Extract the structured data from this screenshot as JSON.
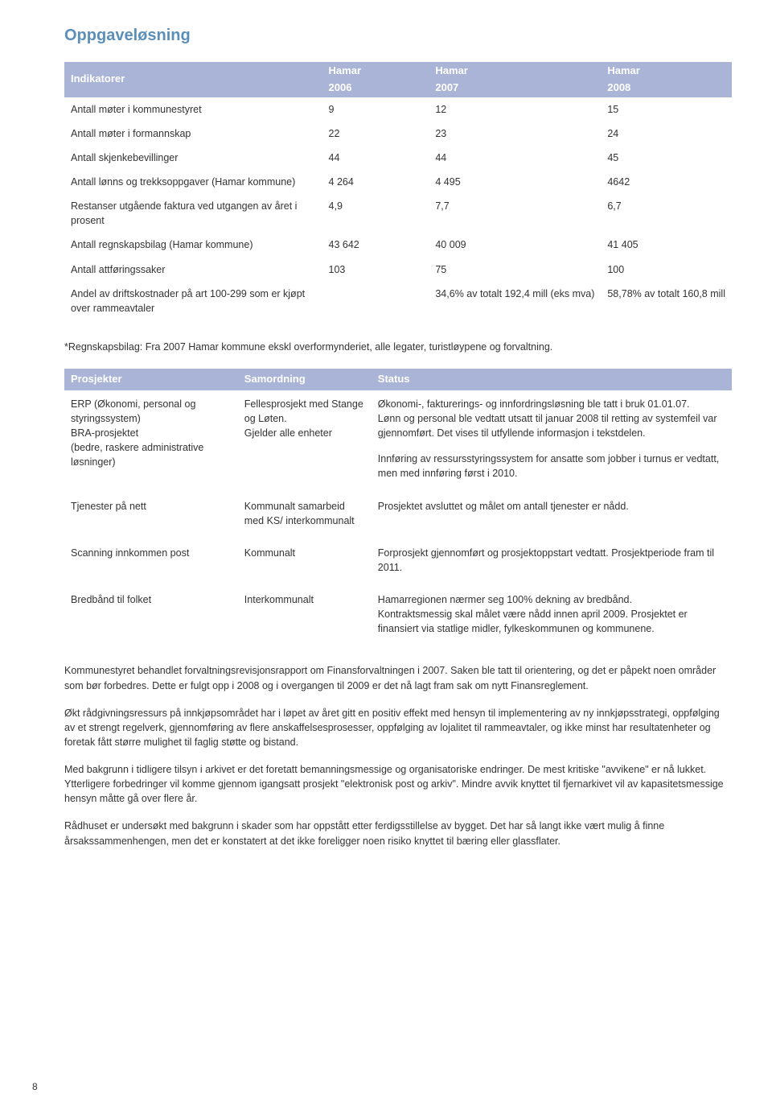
{
  "section_title": "Oppgaveløsning",
  "indicators_table": {
    "header": {
      "c0": "Indikatorer",
      "c1_l1": "Hamar",
      "c1_l2": "2006",
      "c2_l1": "Hamar",
      "c2_l2": "2007",
      "c3_l1": "Hamar",
      "c3_l2": "2008"
    },
    "rows": [
      {
        "label": "Antall møter i kommunestyret",
        "v1": "9",
        "v2": "12",
        "v3": "15"
      },
      {
        "label": "Antall møter i formannskap",
        "v1": "22",
        "v2": "23",
        "v3": "24"
      },
      {
        "label": "Antall skjenkebevillinger",
        "v1": "44",
        "v2": "44",
        "v3": "45"
      },
      {
        "label": "Antall lønns og trekksoppgaver (Hamar kommune)",
        "v1": "4 264",
        "v2": "4 495",
        "v3": "4642"
      },
      {
        "label": "Restanser utgående faktura ved utgangen av året i prosent",
        "v1": "4,9",
        "v2": "7,7",
        "v3": "6,7"
      },
      {
        "label": "Antall regnskapsbilag (Hamar kommune)",
        "v1": "43 642",
        "v2": "40 009",
        "v3": "41 405"
      },
      {
        "label": "Antall attføringssaker",
        "v1": "103",
        "v2": "75",
        "v3": "100"
      },
      {
        "label": "Andel av driftskostnader på art 100-299 som er kjøpt over rammeavtaler",
        "v1": "",
        "v2": "34,6% av totalt 192,4 mill (eks mva)",
        "v3": "58,78% av totalt 160,8 mill"
      }
    ]
  },
  "footnote": "*Regnskapsbilag: Fra 2007 Hamar kommune ekskl overformynderiet, alle legater, turistløypene og forvaltning.",
  "projects_table": {
    "header": {
      "c0": "Prosjekter",
      "c1": "Samordning",
      "c2": "Status"
    },
    "rows": [
      {
        "project": "ERP (Økonomi, personal og styringssystem)\nBRA-prosjektet\n(bedre, raskere administrative løsninger)",
        "coord": "Fellesprosjekt med Stange og Løten.\nGjelder alle enheter",
        "status_p1": "Økonomi-, fakturerings- og innfordringsløsning ble tatt i bruk 01.01.07.\nLønn og personal ble vedtatt utsatt til januar 2008 til retting av systemfeil var gjennomført. Det vises til utfyllende informasjon i tekstdelen.",
        "status_p2": "Innføring av ressursstyringssystem for ansatte som jobber i turnus er vedtatt, men med innføring først i 2010."
      },
      {
        "project": "Tjenester på nett",
        "coord": "Kommunalt samarbeid med KS/ interkommunalt",
        "status": "Prosjektet avsluttet og målet om antall tjenester er nådd."
      },
      {
        "project": "Scanning innkommen post",
        "coord": "Kommunalt",
        "status": "Forprosjekt gjennomført og prosjektoppstart vedtatt. Prosjektperiode fram til 2011."
      },
      {
        "project": "Bredbånd til folket",
        "coord": "Interkommunalt",
        "status": "Hamarregionen nærmer seg 100% dekning av bredbånd.\nKontraktsmessig skal målet være nådd innen april 2009. Prosjektet er finansiert via statlige midler, fylkeskommunen og kommunene."
      }
    ]
  },
  "paragraphs": [
    "Kommunestyret behandlet forvaltningsrevisjonsrapport om Finansforvaltningen i 2007. Saken ble tatt til orientering, og det er påpekt noen områder som bør forbedres. Dette er fulgt opp i 2008 og i overgangen til 2009 er det nå lagt fram sak om nytt Finansreglement.",
    "Økt rådgivningsressurs på innkjøpsområdet har i løpet av året gitt en positiv effekt med hensyn til implementering av ny innkjøpsstrategi, oppfølging av et strengt regelverk, gjennomføring av flere anskaffelsesprosesser, oppfølging av lojalitet til rammeavtaler, og ikke minst har resultatenheter og foretak fått større mulighet til faglig støtte og bistand.",
    "Med bakgrunn i tidligere tilsyn i arkivet er det foretatt bemanningsmessige og organisatoriske endringer. De mest kritiske \"avvikene\" er nå lukket. Ytterligere forbedringer vil komme gjennom igangsatt prosjekt \"elektronisk post og arkiv\". Mindre avvik knyttet til fjernarkivet vil av kapasitetsmessige hensyn måtte gå over flere år.",
    "Rådhuset er undersøkt med bakgrunn i skader som har oppstått etter ferdigsstillelse av bygget. Det har så langt ikke vært mulig å finne årsakssammenhengen, men det er konstatert at det ikke foreligger noen risiko knyttet til bæring eller glassflater."
  ],
  "page_number": "8",
  "colors": {
    "header_bg": "#a9b4d6",
    "header_fg": "#ffffff",
    "title": "#5b8fb9",
    "text": "#333333"
  }
}
